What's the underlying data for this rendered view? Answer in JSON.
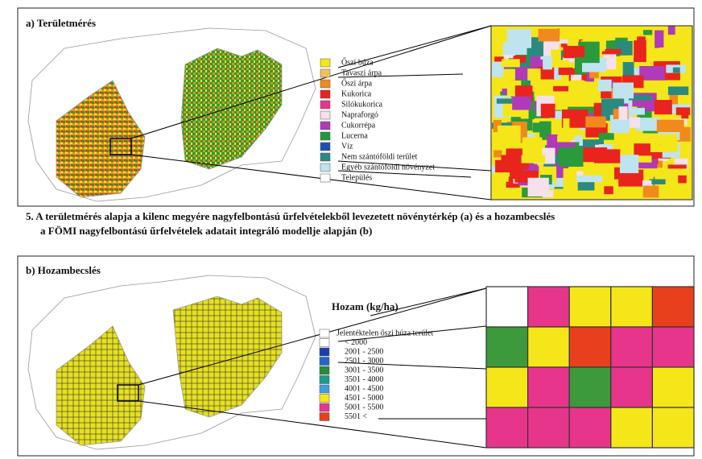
{
  "panel_a": {
    "title": "a) Területmérés",
    "legend": [
      {
        "label": "Őszi búza",
        "color": "#f5e61a"
      },
      {
        "label": "Tavaszi árpa",
        "color": "#f2c060"
      },
      {
        "label": "Őszi árpa",
        "color": "#f08a1c"
      },
      {
        "label": "Kukorica",
        "color": "#e8241c"
      },
      {
        "label": "Silókukorica",
        "color": "#e8358c"
      },
      {
        "label": "Napraforgó",
        "color": "#f6e0ee"
      },
      {
        "label": "Cukorrépa",
        "color": "#b03ab8"
      },
      {
        "label": "Lucerna",
        "color": "#1e9a3c"
      },
      {
        "label": "Víz",
        "color": "#1f4fb4"
      },
      {
        "label": "Nem szántóföldi terület",
        "color": "#2a8a80"
      },
      {
        "label": "Egyéb szántóföldi növényzet",
        "color": "#bfe3ef"
      },
      {
        "label": "Település",
        "color": "#ffffff"
      }
    ]
  },
  "caption": [
    "5. A területmérés alapja a kilenc megyére nagyfelbontású űrfelvételekből levezetett növénytérkép (a) és a hozambecslés",
    "a FÖMI nagyfelbontású űrfelvételek adatait integráló modellje alapján (b)"
  ],
  "panel_b": {
    "title": "b) Hozambecslés",
    "legend_title": "Hozam (kg/ha)",
    "legend": [
      {
        "label": "Jelentéktelen őszi búza terület",
        "color": "#ffffff"
      },
      {
        "label": "< 2000",
        "color": "#ffffff"
      },
      {
        "label": "2001 - 2500",
        "color": "#1a3fb0"
      },
      {
        "label": "2501 - 3000",
        "color": "#2266cc"
      },
      {
        "label": "3001 - 3500",
        "color": "#2a8a3a"
      },
      {
        "label": "3501 - 4000",
        "color": "#1e9a8a"
      },
      {
        "label": "4001 - 4500",
        "color": "#3aa0e0"
      },
      {
        "label": "4501 - 5000",
        "color": "#f5e61a"
      },
      {
        "label": "5001 - 5500",
        "color": "#e8358c"
      },
      {
        "label": "5501 <",
        "color": "#e8401c"
      }
    ]
  }
}
